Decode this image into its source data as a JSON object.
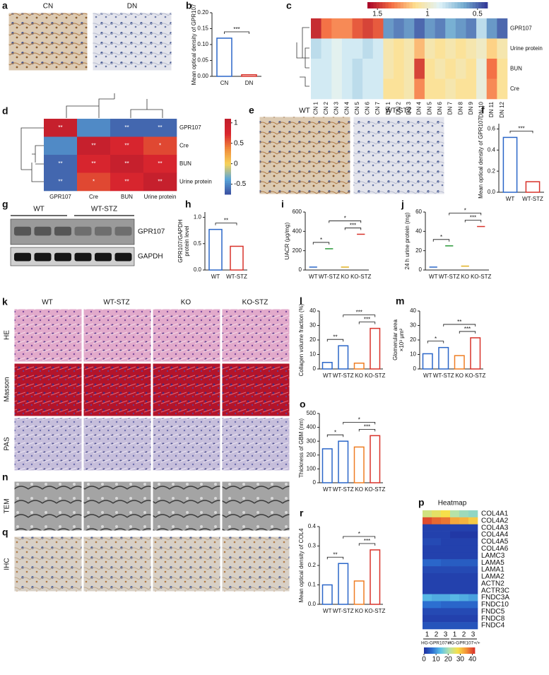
{
  "panels": {
    "a": {
      "letter": "a",
      "images": [
        "CN",
        "DN"
      ]
    },
    "b": {
      "letter": "b",
      "type": "bar",
      "ylabel": "Mean optical density of GPR107",
      "categories": [
        "CN",
        "DN"
      ],
      "values": [
        0.12,
        0.005
      ],
      "colors": [
        "#2a66c8",
        "#d8322a"
      ],
      "ylim": [
        0,
        0.2
      ],
      "yticks": [
        {
          "value": 0,
          "label": "0.00"
        },
        {
          "value": 0.05,
          "label": "0.05"
        },
        {
          "value": 0.1,
          "label": "0.10"
        },
        {
          "value": 0.15,
          "label": "0.15"
        },
        {
          "value": 0.2,
          "label": "0.20"
        }
      ],
      "comparisons": [
        {
          "groups": [
            "CN",
            "DN"
          ],
          "label": "***"
        }
      ]
    },
    "c": {
      "letter": "c",
      "clim": [
        0.4,
        1.6
      ],
      "colorbar_ticks": [
        1.5,
        1,
        0.5
      ],
      "colormap": [
        "#313695",
        "#74add1",
        "#e0f3f8",
        "#fee090",
        "#f46d43",
        "#a50026"
      ],
      "rows": [
        "GPR107",
        "Urine protein",
        "BUN",
        "Cre"
      ],
      "columns": [
        "CN 1",
        "CN 2",
        "CN 3",
        "CN 4",
        "CN 5",
        "CN 6",
        "CN 7",
        "DN 1",
        "DN 2",
        "DN 3",
        "DN 4",
        "DN 5",
        "DN 6",
        "DN 7",
        "DN 8",
        "DN 9",
        "DN 10",
        "DN 11",
        "DN 12"
      ],
      "values": [
        [
          1.5,
          1.35,
          1.3,
          1.3,
          1.4,
          1.45,
          1.4,
          0.6,
          0.55,
          0.6,
          0.5,
          0.6,
          0.55,
          0.65,
          0.6,
          0.55,
          0.8,
          0.6,
          0.5
        ],
        [
          0.8,
          0.85,
          0.9,
          0.85,
          0.85,
          0.8,
          0.85,
          1.05,
          1.1,
          1.05,
          1.2,
          1.05,
          1.1,
          1.05,
          1.1,
          1.05,
          1.0,
          1.15,
          1.05
        ],
        [
          0.85,
          0.85,
          0.9,
          0.85,
          0.8,
          0.85,
          0.85,
          1.05,
          1.1,
          1.05,
          1.45,
          1.1,
          1.05,
          1.1,
          1.05,
          1.1,
          0.95,
          1.35,
          1.1
        ],
        [
          0.85,
          0.85,
          0.9,
          0.85,
          0.8,
          0.85,
          0.85,
          1.1,
          1.1,
          1.05,
          1.3,
          1.1,
          1.1,
          1.05,
          1.1,
          1.1,
          0.95,
          1.3,
          1.1
        ]
      ]
    },
    "d": {
      "letter": "d",
      "clim": [
        -0.75,
        1.1
      ],
      "colorbar_ticks": [
        1,
        0.5,
        0,
        -0.5
      ],
      "colormap": [
        "#3a4fa0",
        "#5aa6d8",
        "#f6d35a",
        "#f08a3a",
        "#d8252e",
        "#c01e2d"
      ],
      "rows": [
        "GPR107",
        "Cre",
        "BUN",
        "Urine protein"
      ],
      "columns": [
        "GPR107",
        "Cre",
        "BUN",
        "Urine protein"
      ],
      "values": [
        [
          1,
          -0.5,
          -0.65,
          -0.65
        ],
        [
          -0.5,
          1,
          0.75,
          0.6
        ],
        [
          -0.65,
          0.75,
          1,
          0.75
        ],
        [
          -0.65,
          0.6,
          0.75,
          1
        ]
      ],
      "cell_labels": [
        [
          "**",
          null,
          "**",
          "**"
        ],
        [
          null,
          "**",
          "**",
          "*"
        ],
        [
          "**",
          "**",
          "**",
          "**"
        ],
        [
          "**",
          "*",
          "**",
          "**"
        ]
      ]
    },
    "e": {
      "letter": "e",
      "images": [
        "WT",
        "WT-STZ"
      ]
    },
    "f": {
      "letter": "f",
      "type": "bar",
      "ylabel": "Mean optical density of GPR107",
      "categories": [
        "WT",
        "WT-STZ"
      ],
      "values": [
        0.52,
        0.1
      ],
      "colors": [
        "#2a66c8",
        "#d8322a"
      ],
      "ylim": [
        0,
        0.65
      ],
      "yticks": [
        {
          "value": 0,
          "label": "0.0"
        },
        {
          "value": 0.2,
          "label": "0.2"
        },
        {
          "value": 0.4,
          "label": "0.4"
        },
        {
          "value": 0.6,
          "label": "0.6"
        }
      ],
      "comparisons": [
        {
          "groups": [
            "WT",
            "WT-STZ"
          ],
          "label": "***"
        }
      ]
    },
    "g": {
      "letter": "g",
      "groups": [
        "WT",
        "WT-STZ"
      ],
      "bands": [
        "GPR107",
        "GAPDH"
      ]
    },
    "h": {
      "letter": "h",
      "type": "bar",
      "ylabel": [
        "GPR107/GAPDH",
        "protein level"
      ],
      "categories": [
        "WT",
        "WT-STZ"
      ],
      "values": [
        0.77,
        0.45
      ],
      "colors": [
        "#2a66c8",
        "#d8322a"
      ],
      "ylim": [
        0,
        1.1
      ],
      "yticks": [
        {
          "value": 0,
          "label": "0.0"
        },
        {
          "value": 0.5,
          "label": "0.5"
        },
        {
          "value": 1,
          "label": "1.0"
        }
      ],
      "comparisons": [
        {
          "groups": [
            "WT",
            "WT-STZ"
          ],
          "label": "**"
        }
      ]
    },
    "i": {
      "letter": "i",
      "type": "dot",
      "ylabel": "UACR (μg/mg)",
      "categories": [
        "WT",
        "WT-STZ",
        "KO",
        "KO-STZ"
      ],
      "values": [
        30,
        220,
        30,
        370
      ],
      "colors": [
        "#2a66c8",
        "#2a9a3a",
        "#e0b020",
        "#d8322a"
      ],
      "ylim": [
        0,
        600
      ],
      "yticks": [
        0,
        200,
        400,
        600
      ],
      "comparisons": [
        {
          "groups": [
            "WT",
            "WT-STZ"
          ],
          "label": "*"
        },
        {
          "groups": [
            "KO",
            "KO-STZ"
          ],
          "label": "***"
        },
        {
          "groups": [
            "WT-STZ",
            "KO-STZ"
          ],
          "label": "*"
        }
      ]
    },
    "j": {
      "letter": "j",
      "type": "dot",
      "ylabel": "24 h urine protein (mg)",
      "categories": [
        "WT",
        "WT-STZ",
        "KO",
        "KO-STZ"
      ],
      "values": [
        3,
        25,
        4,
        45
      ],
      "colors": [
        "#2a66c8",
        "#2a9a3a",
        "#e0b020",
        "#d8322a"
      ],
      "ylim": [
        0,
        60
      ],
      "yticks": [
        0,
        20,
        40,
        60
      ],
      "comparisons": [
        {
          "groups": [
            "WT",
            "WT-STZ"
          ],
          "label": "*"
        },
        {
          "groups": [
            "KO",
            "KO-STZ"
          ],
          "label": "***"
        },
        {
          "groups": [
            "WT-STZ",
            "KO-STZ"
          ],
          "label": "*"
        }
      ]
    },
    "k": {
      "letter": "k",
      "columns": [
        "WT",
        "WT-STZ",
        "KO",
        "KO-STZ"
      ],
      "rows": [
        "HE",
        "Masson",
        "PAS"
      ]
    },
    "l": {
      "letter": "l",
      "type": "bar",
      "ylabel": "Collagen volume fraction (%)",
      "categories": [
        "WT",
        "WT-STZ",
        "KO",
        "KO-STZ"
      ],
      "values": [
        4.5,
        16,
        4,
        28
      ],
      "colors": [
        "#2a66c8",
        "#2a66c8",
        "#ef7d22",
        "#d8322a"
      ],
      "ylim": [
        0,
        40
      ],
      "yticks": [
        0,
        10,
        20,
        30,
        40
      ],
      "comparisons": [
        {
          "groups": [
            "WT",
            "WT-STZ"
          ],
          "label": "**"
        },
        {
          "groups": [
            "KO",
            "KO-STZ"
          ],
          "label": "***"
        },
        {
          "groups": [
            "WT-STZ",
            "KO-STZ"
          ],
          "label": "***"
        }
      ]
    },
    "m": {
      "letter": "m",
      "type": "bar",
      "ylabel": [
        "Glomerular area",
        "×10³ μm²"
      ],
      "categories": [
        "WT",
        "WT-STZ",
        "KO",
        "KO-STZ"
      ],
      "values": [
        10.5,
        14.8,
        9.2,
        21.5
      ],
      "colors": [
        "#2a66c8",
        "#2a66c8",
        "#ef7d22",
        "#d8322a"
      ],
      "ylim": [
        0,
        40
      ],
      "yticks": [
        0,
        10,
        20,
        30,
        40
      ],
      "comparisons": [
        {
          "groups": [
            "WT",
            "WT-STZ"
          ],
          "label": "*"
        },
        {
          "groups": [
            "KO",
            "KO-STZ"
          ],
          "label": "***"
        },
        {
          "groups": [
            "WT-STZ",
            "KO-STZ"
          ],
          "label": "**"
        }
      ]
    },
    "n": {
      "letter": "n",
      "row": "TEM"
    },
    "o": {
      "letter": "o",
      "type": "bar",
      "ylabel": "Thickness of GBM (nm)",
      "categories": [
        "WT",
        "WT-STZ",
        "KO",
        "KO-STZ"
      ],
      "values": [
        245,
        300,
        258,
        340
      ],
      "colors": [
        "#2a66c8",
        "#2a66c8",
        "#ef7d22",
        "#d8322a"
      ],
      "ylim": [
        0,
        500
      ],
      "yticks": [
        0,
        100,
        200,
        300,
        400,
        500
      ],
      "comparisons": [
        {
          "groups": [
            "WT",
            "WT-STZ"
          ],
          "label": "*"
        },
        {
          "groups": [
            "KO",
            "KO-STZ"
          ],
          "label": "***"
        },
        {
          "groups": [
            "WT-STZ",
            "KO-STZ"
          ],
          "label": "*"
        }
      ]
    },
    "p": {
      "letter": "p",
      "title": "Heatmap",
      "clim": [
        0,
        42
      ],
      "colorbar_ticks": [
        0,
        10,
        20,
        30,
        40
      ],
      "colormap": [
        "#1f2f9e",
        "#2c6fd1",
        "#5ec4e8",
        "#b6e3a8",
        "#f6e04a",
        "#f39237",
        "#d7302a"
      ],
      "rows": [
        "COL4A1",
        "COL4A2",
        "COL4A3",
        "COL4A4",
        "COL4A5",
        "COL4A6",
        "LAMC3",
        "LAMA5",
        "LAMA1",
        "LAMA2",
        "ACTN2",
        "ACTR3C",
        "FNDC3A",
        "FNDC10",
        "FNDC5",
        "FNDC8",
        "FNDC4"
      ],
      "columns": [
        "1",
        "2",
        "3",
        "1",
        "2",
        "3"
      ],
      "groups": [
        "HG-GPR107-/-",
        "HG-GPR107+/+"
      ],
      "values": [
        [
          24,
          26,
          28,
          21,
          19,
          18
        ],
        [
          40,
          38,
          37,
          33,
          32,
          30
        ],
        [
          2,
          2,
          2,
          2,
          2,
          2
        ],
        [
          2,
          2,
          2,
          1,
          1,
          1
        ],
        [
          3,
          3,
          2,
          2,
          2,
          2
        ],
        [
          2,
          2,
          2,
          2,
          2,
          2
        ],
        [
          2,
          2,
          2,
          2,
          2,
          2
        ],
        [
          6,
          6,
          5,
          5,
          5,
          5
        ],
        [
          3,
          3,
          3,
          3,
          3,
          3
        ],
        [
          2,
          2,
          2,
          2,
          2,
          2
        ],
        [
          2,
          2,
          2,
          2,
          2,
          2
        ],
        [
          2,
          2,
          2,
          2,
          2,
          2
        ],
        [
          13,
          12,
          12,
          13,
          12,
          11
        ],
        [
          7,
          7,
          6,
          6,
          6,
          6
        ],
        [
          3,
          3,
          3,
          3,
          3,
          3
        ],
        [
          2,
          2,
          2,
          2,
          2,
          2
        ],
        [
          4,
          4,
          4,
          4,
          4,
          4
        ]
      ]
    },
    "q": {
      "letter": "q",
      "row": "IHC"
    },
    "r": {
      "letter": "r",
      "type": "bar",
      "ylabel": "Mean optical density of COL4",
      "categories": [
        "WT",
        "WT-STZ",
        "KO",
        "KO-STZ"
      ],
      "values": [
        0.1,
        0.21,
        0.12,
        0.28
      ],
      "colors": [
        "#2a66c8",
        "#2a66c8",
        "#ef7d22",
        "#d8322a"
      ],
      "ylim": [
        0,
        0.4
      ],
      "yticks": [
        {
          "value": 0,
          "label": "0.0"
        },
        {
          "value": 0.1,
          "label": "0.1"
        },
        {
          "value": 0.2,
          "label": "0.2"
        },
        {
          "value": 0.3,
          "label": "0.3"
        },
        {
          "value": 0.4,
          "label": "0.4"
        }
      ],
      "comparisons": [
        {
          "groups": [
            "WT",
            "WT-STZ"
          ],
          "label": "**"
        },
        {
          "groups": [
            "KO",
            "KO-STZ"
          ],
          "label": "***"
        },
        {
          "groups": [
            "WT-STZ",
            "KO-STZ"
          ],
          "label": "*"
        }
      ]
    }
  }
}
